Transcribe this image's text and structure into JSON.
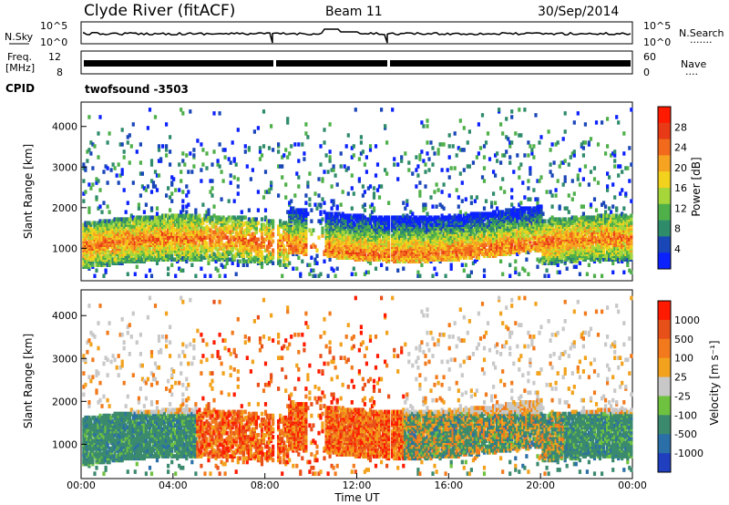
{
  "header": {
    "title": "Clyde River (fitACF)",
    "beam": "Beam 11",
    "date": "30/Sep/2014"
  },
  "panels": {
    "nsky_label": "N.Sky",
    "nsky_ticks": [
      "10^5",
      "10^0"
    ],
    "nsearch_label": "N.Search",
    "nsearch_ticks": [
      "10^5",
      "10^0"
    ],
    "freq_label": "Freq.",
    "freq_unit": "[MHz]",
    "freq_ticks": [
      "12",
      "8"
    ],
    "nave_label": "Nave",
    "nave_ticks": [
      "60",
      "0"
    ],
    "cpid_label": "CPID",
    "cpid_value": "twofsound -3503"
  },
  "chart_data": [
    {
      "type": "heatmap",
      "title": "",
      "xlabel": "",
      "ylabel": "Slant Range [km]",
      "x_ticks": [
        "00:00",
        "04:00",
        "08:00",
        "12:00",
        "16:00",
        "20:00",
        "00:00"
      ],
      "xlim": [
        0,
        24
      ],
      "ylim": [
        200,
        4600
      ],
      "y_ticks": [
        1000,
        2000,
        3000,
        4000
      ],
      "colorbar_label": "Power [dB]",
      "colorbar_ticks": [
        4,
        8,
        12,
        16,
        20,
        24,
        28
      ],
      "colorbar_colors": [
        "#0b22ff",
        "#1a47b8",
        "#2f8c6a",
        "#4fb04a",
        "#a6d63a",
        "#f2d21c",
        "#f7a322",
        "#f26b1d",
        "#e83a16",
        "#ff1a00"
      ],
      "description_series": [
        {
          "name": "",
          "x": [
            0,
            2,
            4,
            6,
            8,
            10,
            12,
            14,
            16,
            18,
            20,
            22,
            24
          ],
          "y": [
            900,
            1000,
            1100,
            1200,
            1400,
            1500,
            1300,
            1500,
            1700,
            1600,
            1400,
            1200,
            900
          ]
        }
      ]
    },
    {
      "type": "heatmap",
      "title": "",
      "xlabel": "Time UT",
      "ylabel": "Slant Range [km]",
      "x_ticks": [
        "00:00",
        "04:00",
        "08:00",
        "12:00",
        "16:00",
        "20:00",
        "00:00"
      ],
      "xlim": [
        0,
        24
      ],
      "ylim": [
        200,
        4600
      ],
      "y_ticks": [
        1000,
        2000,
        3000,
        4000
      ],
      "colorbar_label": "Velocity [m s⁻¹]",
      "colorbar_ticks": [
        "1000",
        "500",
        "100",
        "25",
        "-25",
        "-100",
        "-500",
        "-1000"
      ],
      "colorbar_colors": [
        "#1f3fbf",
        "#2a6fa8",
        "#3b8a6e",
        "#6fc23f",
        "#c8c8c8",
        "#f2a21c",
        "#f27a1c",
        "#e8501a",
        "#ff1a00"
      ]
    }
  ]
}
